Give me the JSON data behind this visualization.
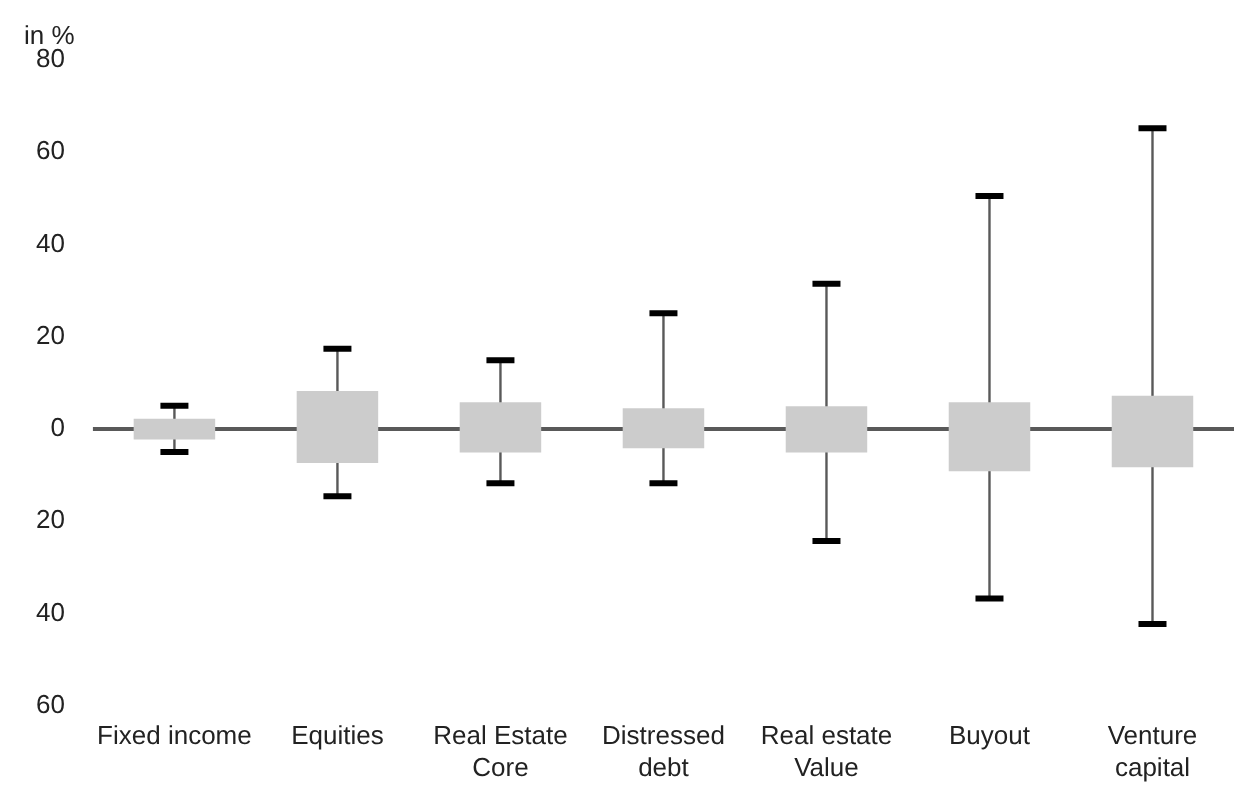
{
  "chart_data": {
    "type": "box",
    "ylabel": "in %",
    "categories": [
      "Fixed income",
      "Equities",
      "Real Estate Core",
      "Distressed debt",
      "Real estate Value",
      "Buyout",
      "Venture capital"
    ],
    "boxes": [
      {
        "low": -5,
        "q1": -2.3,
        "q3": 2.2,
        "high": 5
      },
      {
        "low": -14.6,
        "q1": -7.4,
        "q3": 8.2,
        "high": 17.4
      },
      {
        "low": -11.8,
        "q1": -5.1,
        "q3": 5.8,
        "high": 14.9
      },
      {
        "low": -11.8,
        "q1": -4.2,
        "q3": 4.5,
        "high": 25.1
      },
      {
        "low": -24.3,
        "q1": -5.1,
        "q3": 4.9,
        "high": 31.5
      },
      {
        "low": -36.8,
        "q1": -9.2,
        "q3": 5.8,
        "high": 50.5
      },
      {
        "low": -42.3,
        "q1": -8.3,
        "q3": 7.2,
        "high": 65.2
      }
    ],
    "color": "#cccccc",
    "ylim": [
      -60,
      80
    ],
    "yticks": [
      80,
      60,
      40,
      20,
      0,
      {
        "value": -20,
        "label": "20"
      },
      {
        "value": -40,
        "label": "40"
      },
      {
        "value": -60,
        "label": "60"
      }
    ],
    "ref_lines": [
      {
        "axis": "y",
        "value": 0,
        "color": "#595959"
      }
    ],
    "grid": false,
    "legend": false
  }
}
